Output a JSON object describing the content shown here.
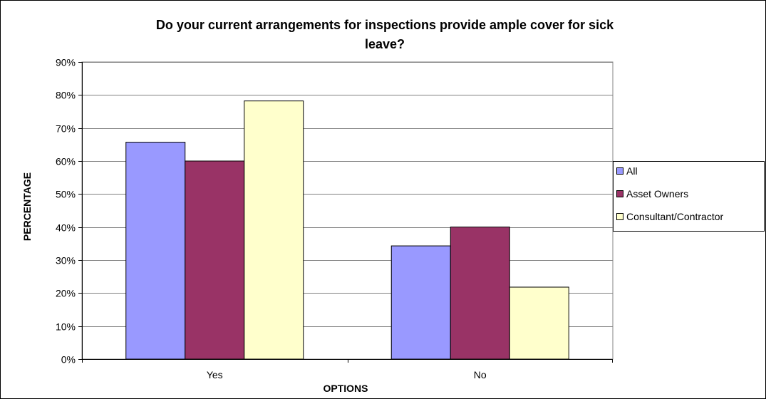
{
  "chart_data": {
    "type": "bar",
    "title_lines": [
      "Do your current arrangements for inspections provide ample cover for sick",
      "leave?"
    ],
    "xlabel": "OPTIONS",
    "ylabel": "PERCENTAGE",
    "categories": [
      "Yes",
      "No"
    ],
    "series": [
      {
        "name": "All",
        "values": [
          0.657,
          0.343
        ],
        "color": "#9999ff"
      },
      {
        "name": "Asset Owners",
        "values": [
          0.6,
          0.4
        ],
        "color": "#993366"
      },
      {
        "name": "Consultant/Contractor",
        "values": [
          0.782,
          0.218
        ],
        "color": "#ffffcc"
      }
    ],
    "ylim": [
      0,
      0.9
    ],
    "yticks": [
      "0%",
      "10%",
      "20%",
      "30%",
      "40%",
      "50%",
      "60%",
      "70%",
      "80%",
      "90%"
    ],
    "grid": true,
    "legend_position": "right"
  }
}
